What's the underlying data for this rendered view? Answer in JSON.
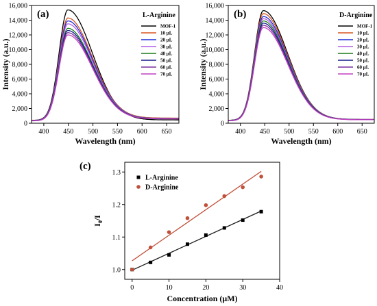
{
  "chart_data": [
    {
      "id": "a",
      "type": "line",
      "panel_label": "(a)",
      "title": "L-Arginine",
      "xlabel": "Wavelength (nm)",
      "ylabel": "Intensity (a.u.)",
      "xlim": [
        375,
        675
      ],
      "ylim": [
        0,
        16000
      ],
      "xticks": [
        400,
        450,
        500,
        550,
        600,
        650
      ],
      "yticks": [
        0,
        2000,
        4000,
        6000,
        8000,
        10000,
        12000,
        14000,
        16000
      ],
      "ytick_labels": [
        "0",
        "2,000",
        "4,000",
        "6,000",
        "8,000",
        "10,000",
        "12,000",
        "14,000",
        "16,000"
      ],
      "legend_position": "right",
      "series": [
        {
          "name": "MOF-1",
          "color": "#000000",
          "peak_x": 449,
          "peak_y": 15400,
          "start_y": 400,
          "end_y": 450
        },
        {
          "name": "10 μL",
          "color": "#d9531e",
          "peak_x": 449,
          "peak_y": 14300,
          "start_y": 380,
          "end_y": 700
        },
        {
          "name": "20 μL",
          "color": "#1f2bd6",
          "peak_x": 449,
          "peak_y": 13900,
          "start_y": 370,
          "end_y": 650
        },
        {
          "name": "30 μL",
          "color": "#b25ce6",
          "peak_x": 449,
          "peak_y": 13500,
          "start_y": 360,
          "end_y": 640
        },
        {
          "name": "40 μL",
          "color": "#1c7a1c",
          "peak_x": 449,
          "peak_y": 12900,
          "start_y": 350,
          "end_y": 620
        },
        {
          "name": "50 μL",
          "color": "#151a8a",
          "peak_x": 449,
          "peak_y": 12600,
          "start_y": 340,
          "end_y": 610
        },
        {
          "name": "60 μL",
          "color": "#7a2d9e",
          "peak_x": 449,
          "peak_y": 12300,
          "start_y": 330,
          "end_y": 600
        },
        {
          "name": "70 μL",
          "color": "#c03fc0",
          "peak_x": 449,
          "peak_y": 12000,
          "start_y": 320,
          "end_y": 590
        }
      ]
    },
    {
      "id": "b",
      "type": "line",
      "panel_label": "(b)",
      "title": "D-Arginine",
      "xlabel": "Wavelength (nm)",
      "ylabel": "Intensity (a.u.)",
      "xlim": [
        375,
        675
      ],
      "ylim": [
        0,
        16000
      ],
      "xticks": [
        400,
        450,
        500,
        550,
        600,
        650
      ],
      "yticks": [
        0,
        2000,
        4000,
        6000,
        8000,
        10000,
        12000,
        14000,
        16000
      ],
      "ytick_labels": [
        "0",
        "2,000",
        "4,000",
        "6,000",
        "8,000",
        "10,000",
        "12,000",
        "14,000",
        "16,000"
      ],
      "legend_position": "right",
      "series": [
        {
          "name": "MOF-1",
          "color": "#000000",
          "peak_x": 447,
          "peak_y": 15300,
          "start_y": 400,
          "end_y": 500
        },
        {
          "name": "10 μL",
          "color": "#d9531e",
          "peak_x": 447,
          "peak_y": 14900,
          "start_y": 390,
          "end_y": 520
        },
        {
          "name": "20 μL",
          "color": "#1f2bd6",
          "peak_x": 447,
          "peak_y": 14500,
          "start_y": 380,
          "end_y": 510
        },
        {
          "name": "30 μL",
          "color": "#b25ce6",
          "peak_x": 447,
          "peak_y": 14200,
          "start_y": 370,
          "end_y": 500
        },
        {
          "name": "40 μL",
          "color": "#1c7a1c",
          "peak_x": 447,
          "peak_y": 13900,
          "start_y": 360,
          "end_y": 500
        },
        {
          "name": "50 μL",
          "color": "#151a8a",
          "peak_x": 447,
          "peak_y": 13600,
          "start_y": 350,
          "end_y": 490
        },
        {
          "name": "60 μL",
          "color": "#7a2d9e",
          "peak_x": 447,
          "peak_y": 13300,
          "start_y": 340,
          "end_y": 480
        },
        {
          "name": "70 μL",
          "color": "#c03fc0",
          "peak_x": 447,
          "peak_y": 13000,
          "start_y": 330,
          "end_y": 470
        }
      ]
    },
    {
      "id": "c",
      "type": "scatter",
      "panel_label": "(c)",
      "title": "",
      "xlabel": "Concentration (μM)",
      "ylabel_main": "I",
      "ylabel_sub": "0",
      "ylabel_tail": "/I",
      "xlim": [
        -2,
        40
      ],
      "ylim": [
        0.97,
        1.33
      ],
      "xticks": [
        0,
        10,
        20,
        30,
        40
      ],
      "yticks": [
        1.0,
        1.1,
        1.2,
        1.3
      ],
      "ytick_labels": [
        "1.0",
        "1.1",
        "1.2",
        "1.3"
      ],
      "legend_position": "top-left",
      "series": [
        {
          "name": "L-Arginine",
          "marker": "square",
          "color": "#000000",
          "line_color": "#1a1a1a",
          "x": [
            0,
            5,
            10,
            15,
            20,
            25,
            30,
            35
          ],
          "y": [
            1.0,
            1.022,
            1.045,
            1.078,
            1.106,
            1.128,
            1.152,
            1.178
          ],
          "fit": {
            "x": [
              0,
              35
            ],
            "y": [
              0.998,
              1.18
            ]
          }
        },
        {
          "name": "D-Arginine",
          "marker": "circle",
          "color": "#c0503a",
          "line_color": "#c0503a",
          "x": [
            0,
            5,
            10,
            15,
            20,
            25,
            30,
            35
          ],
          "y": [
            1.0,
            1.068,
            1.115,
            1.158,
            1.198,
            1.226,
            1.253,
            1.286
          ],
          "fit": {
            "x": [
              0,
              35
            ],
            "y": [
              1.027,
              1.302
            ]
          }
        }
      ]
    }
  ]
}
